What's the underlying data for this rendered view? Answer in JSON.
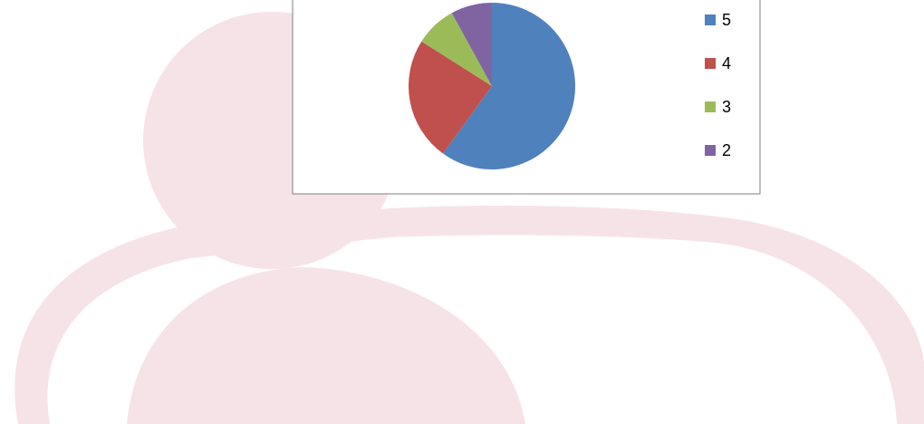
{
  "chart_data": {
    "type": "pie",
    "categories": [
      "5",
      "4",
      "3",
      "2"
    ],
    "values": [
      60,
      24,
      8,
      8
    ],
    "colors": [
      "#4f81bd",
      "#c0504d",
      "#9bbb59",
      "#8064a2"
    ],
    "legend": "right"
  }
}
